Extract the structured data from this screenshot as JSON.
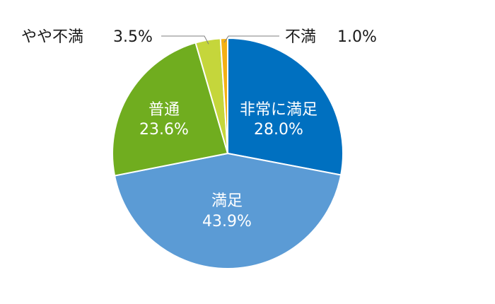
{
  "chart_data": {
    "type": "pie",
    "title": "",
    "slices": [
      {
        "label": "非常に満足",
        "value": 28.0,
        "value_text": "28.0%",
        "color": "#0070c0",
        "label_position": "inside"
      },
      {
        "label": "満足",
        "value": 43.9,
        "value_text": "43.9%",
        "color": "#5b9bd5",
        "label_position": "inside"
      },
      {
        "label": "普通",
        "value": 23.6,
        "value_text": "23.6%",
        "color": "#70ad1f",
        "label_position": "inside"
      },
      {
        "label": "やや不満",
        "value": 3.5,
        "value_text": "3.5%",
        "color": "#c5d63b",
        "label_position": "outside-left"
      },
      {
        "label": "不満",
        "value": 1.0,
        "value_text": "1.0%",
        "color": "#f5b014",
        "label_position": "outside-right"
      }
    ],
    "start": "top",
    "direction": "clockwise",
    "legend": "none"
  }
}
